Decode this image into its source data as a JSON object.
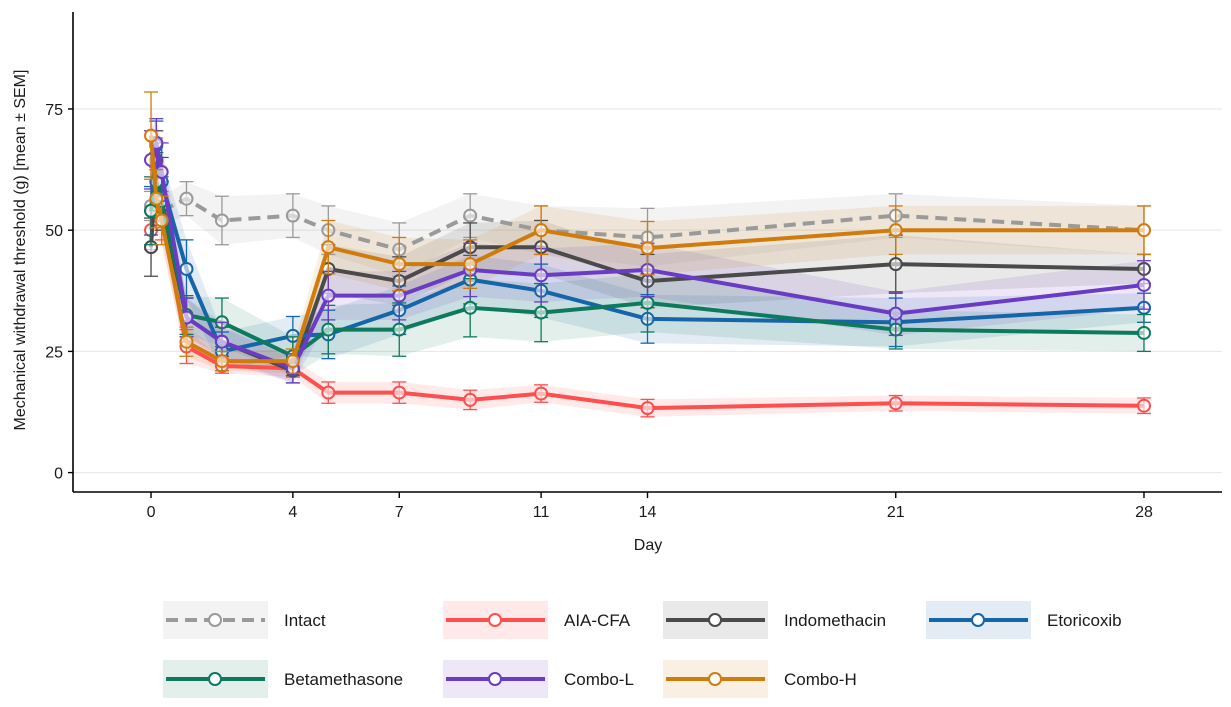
{
  "chart_data": {
    "type": "line",
    "xlabel": "Day",
    "ylabel": "Mechanical withdrawal threshold (g) [mean ± SEM]",
    "xlim": [
      -2.2,
      30.2
    ],
    "ylim": [
      -4,
      95
    ],
    "x_ticks": [
      0,
      4,
      7,
      11,
      14,
      21,
      28
    ],
    "y_ticks": [
      0,
      25,
      50,
      75
    ],
    "grid": "horizontal",
    "legend_position": "bottom",
    "series": [
      {
        "name": "Intact",
        "color": "#9a9a9a",
        "dashed": true,
        "x": [
          0,
          0.15,
          0.3,
          1,
          2,
          4,
          5,
          7,
          9,
          11,
          14,
          21,
          28
        ],
        "y": [
          55,
          53,
          54,
          56.5,
          52,
          53,
          50,
          46,
          53,
          50,
          48.5,
          53,
          50
        ],
        "sem": [
          3,
          3,
          3,
          3.5,
          5,
          4.5,
          5,
          5.5,
          4.5,
          5,
          6,
          4.5,
          5
        ]
      },
      {
        "name": "AIA-CFA",
        "color": "#ff4e4e",
        "dashed": false,
        "x": [
          0,
          0.15,
          0.3,
          1,
          2,
          4,
          5,
          7,
          9,
          11,
          14,
          21,
          28
        ],
        "y": [
          50,
          64,
          53,
          26,
          22,
          21.5,
          16.5,
          16.5,
          15,
          16.3,
          13.3,
          14.3,
          13.8
        ],
        "sem": [
          4,
          5,
          5,
          3.5,
          1.5,
          1.8,
          2.2,
          2.2,
          2,
          1.8,
          1.8,
          1.6,
          1.6
        ]
      },
      {
        "name": "Indomethacin",
        "color": "#4a4a4a",
        "dashed": false,
        "x": [
          0,
          0.15,
          0.3,
          1,
          2,
          4,
          5,
          7,
          9,
          11,
          14,
          21,
          28
        ],
        "y": [
          46.5,
          64.5,
          55,
          32,
          27,
          21,
          42,
          39.5,
          46.5,
          46.5,
          39.5,
          43,
          42
        ],
        "sem": [
          6,
          6,
          5,
          4,
          3,
          2.5,
          5,
          5,
          5,
          5.5,
          5.5,
          6,
          3
        ]
      },
      {
        "name": "Etoricoxib",
        "color": "#1565a8",
        "dashed": false,
        "x": [
          0,
          0.15,
          0.3,
          1,
          2,
          4,
          5,
          7,
          9,
          11,
          14,
          21,
          28
        ],
        "y": [
          54,
          67.5,
          60,
          42,
          25,
          28.2,
          28.5,
          33.5,
          39.8,
          37.5,
          31.7,
          31,
          34
        ],
        "sem": [
          5,
          5,
          5,
          6,
          4,
          4,
          5,
          5,
          5,
          5.5,
          5,
          5,
          3
        ]
      },
      {
        "name": "Betamethasone",
        "color": "#0d7a5e",
        "dashed": false,
        "x": [
          0,
          0.15,
          0.3,
          1,
          2,
          4,
          5,
          7,
          9,
          11,
          14,
          21,
          28
        ],
        "y": [
          54,
          60,
          56,
          32.5,
          31,
          24,
          29.5,
          29.5,
          34,
          33,
          35,
          29.5,
          28.8
        ],
        "sem": [
          7,
          6,
          5,
          4,
          5,
          4,
          5,
          5.5,
          6,
          6,
          6,
          4,
          3.8
        ]
      },
      {
        "name": "Combo-L",
        "color": "#6a3cc4",
        "dashed": false,
        "x": [
          0,
          0.15,
          0.3,
          1,
          2,
          4,
          5,
          7,
          9,
          11,
          14,
          21,
          28
        ],
        "y": [
          64.5,
          68,
          62,
          32,
          27,
          21.5,
          36.5,
          36.5,
          41.8,
          40.7,
          41.8,
          32.8,
          38.7
        ],
        "sem": [
          6,
          5,
          6,
          4,
          4,
          3,
          5,
          5,
          5.5,
          5.5,
          5.5,
          4.5,
          5
        ]
      },
      {
        "name": "Combo-H",
        "color": "#d07c0d",
        "dashed": false,
        "x": [
          0,
          0.15,
          0.3,
          1,
          2,
          4,
          5,
          7,
          9,
          11,
          14,
          21,
          28
        ],
        "y": [
          69.5,
          56.5,
          52,
          27,
          23,
          23,
          46.5,
          43,
          43,
          50,
          46.3,
          50,
          50
        ],
        "sem": [
          9,
          6,
          5,
          3,
          2,
          2.5,
          5.5,
          5.5,
          5,
          5,
          5.5,
          5,
          5
        ]
      }
    ]
  }
}
